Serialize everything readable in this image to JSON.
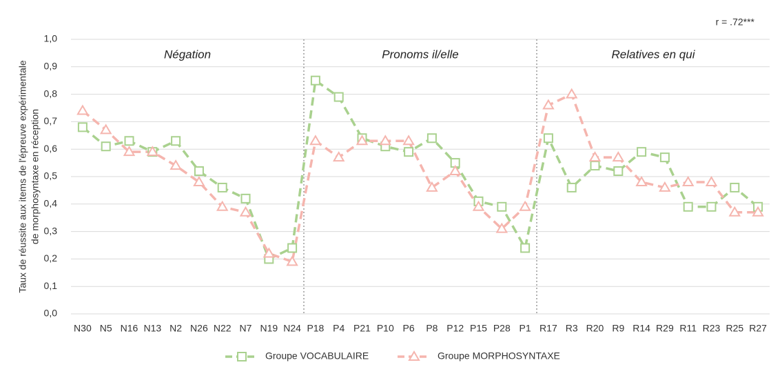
{
  "chart_data": {
    "type": "line",
    "annotation": "r = .72***",
    "y_label": [
      "Taux de réussite aux items de l'épreuve expérimentale",
      "de morphosyntaxe en réception"
    ],
    "sections": [
      "Négation",
      "Pronoms il/elle",
      "Relatives en qui"
    ],
    "categories": [
      "N30",
      "N5",
      "N16",
      "N13",
      "N2",
      "N26",
      "N22",
      "N7",
      "N19",
      "N24",
      "P18",
      "P4",
      "P21",
      "P10",
      "P6",
      "P8",
      "P12",
      "P15",
      "P28",
      "P1",
      "R17",
      "R3",
      "R20",
      "R9",
      "R14",
      "R29",
      "R11",
      "R23",
      "R25",
      "R27"
    ],
    "series": [
      {
        "name": "Groupe VOCABULAIRE",
        "color": "#a9d18e",
        "marker": "square",
        "values": [
          0.68,
          0.61,
          0.63,
          0.59,
          0.63,
          0.52,
          0.46,
          0.42,
          0.2,
          0.24,
          0.85,
          0.79,
          0.64,
          0.61,
          0.59,
          0.64,
          0.55,
          0.41,
          0.39,
          0.24,
          0.64,
          0.46,
          0.54,
          0.52,
          0.59,
          0.57,
          0.39,
          0.39,
          0.46,
          0.39
        ]
      },
      {
        "name": "Groupe MORPHOSYNTAXE",
        "color": "#f5b5ae",
        "marker": "triangle",
        "values": [
          0.74,
          0.67,
          0.59,
          0.59,
          0.54,
          0.48,
          0.39,
          0.37,
          0.22,
          0.19,
          0.63,
          0.57,
          0.63,
          0.63,
          0.63,
          0.46,
          0.52,
          0.39,
          0.31,
          0.39,
          0.76,
          0.8,
          0.57,
          0.57,
          0.48,
          0.46,
          0.48,
          0.48,
          0.37,
          0.37
        ]
      }
    ],
    "ylim": [
      0,
      1
    ],
    "yticks": [
      {
        "value": 0,
        "label": "0,0"
      },
      {
        "value": 0.1,
        "label": "0,1"
      },
      {
        "value": 0.2,
        "label": "0,2"
      },
      {
        "value": 0.3,
        "label": "0,3"
      },
      {
        "value": 0.4,
        "label": "0,4"
      },
      {
        "value": 0.5,
        "label": "0,5"
      },
      {
        "value": 0.6,
        "label": "0,6"
      },
      {
        "value": 0.7,
        "label": "0,7"
      },
      {
        "value": 0.8,
        "label": "0,8"
      },
      {
        "value": 0.9,
        "label": "0,9"
      },
      {
        "value": 1,
        "label": "1,0"
      }
    ],
    "grid": true
  }
}
